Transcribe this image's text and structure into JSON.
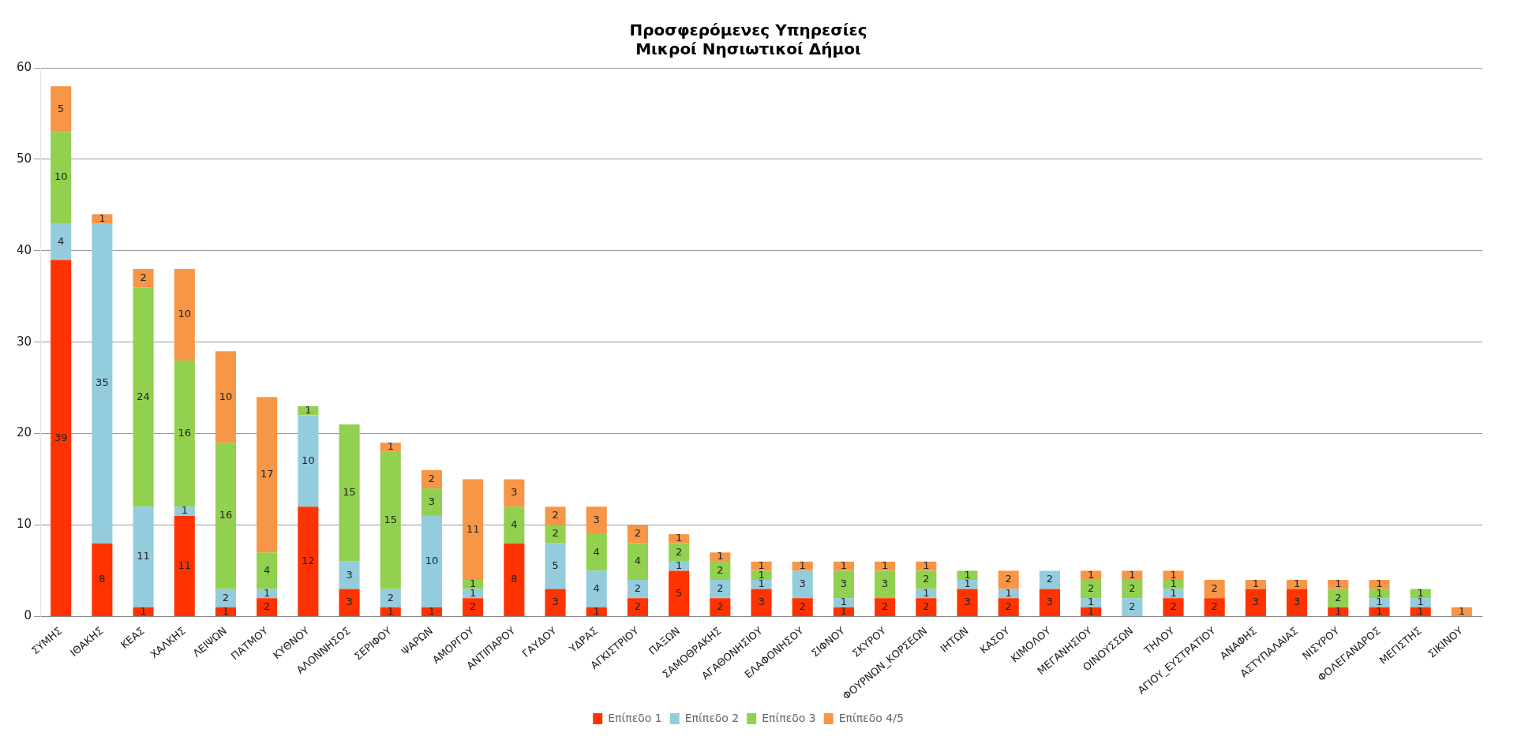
{
  "chart_data": {
    "type": "bar",
    "title": "Προσφερόμενες Υπηρεσίες\nΜικροί Νησιωτικοί Δήμοι",
    "stacked": true,
    "data_labels": true,
    "grid": "y",
    "legend": "bottom",
    "categories": [
      "ΣΥΜΗΣ",
      "ΙΘΑΚΗΣ",
      "ΚΕΑΣ",
      "ΧΑΛΚΗΣ",
      "ΛΕΙΨΩΝ",
      "ΠΑΤΜΟΥ",
      "ΚΥΘΝΟΥ",
      "ΑΛΟΝΝΗΣΟΣ",
      "ΣΕΡΙΦΟΥ",
      "ΨΑΡΩΝ",
      "ΑΜΟΡΓΟΥ",
      "ΑΝΤΙΠΑΡΟΥ",
      "ΓΑΥΔΟΥ",
      "ΥΔΡΑΣ",
      "ΑΓΚΙΣΤΡΙΟΥ",
      "ΠΑΞΩΝ",
      "ΣΑΜΟΘΡΑΚΗΣ",
      "ΑΓΑΘΟΝΗΣΙΟΥ",
      "ΕΛΑΦΟΝΗΣΟΥ",
      "ΣΙΦΝΟΥ",
      "ΣΚΥΡΟΥ",
      "ΦΟΥΡΝΩΝ_ΚΟΡΣΕΩΝ",
      "ΙΗΤΩΝ",
      "ΚΑΣΟΥ",
      "ΚΙΜΟΛΟΥ",
      "ΜΕΓΑΝΗΣΙΟΥ",
      "ΟΙΝΟΥΣΣΩΝ",
      "ΤΗΛΟΥ",
      "ΑΓΙΟΥ_ΕΥΣΤΡΑΤΙΟΥ",
      "ΑΝΑΦΗΣ",
      "ΑΣΤΥΠΑΛΑΙΑΣ",
      "ΝΙΣΥΡΟΥ",
      "ΦΟΛΕΓΑΝΔΡΟΣ",
      "ΜΕΓΙΣΤΗΣ",
      "ΣΙΚΙΝΟΥ"
    ],
    "series": [
      {
        "name": "Επίπεδο 1",
        "color": "#ff3300",
        "values": [
          39,
          8,
          1,
          11,
          1,
          2,
          12,
          3,
          1,
          1,
          2,
          8,
          3,
          1,
          2,
          5,
          2,
          3,
          2,
          1,
          2,
          2,
          3,
          2,
          3,
          1,
          null,
          2,
          2,
          3,
          3,
          1,
          1,
          1,
          null
        ]
      },
      {
        "name": "Επίπεδο 2",
        "color": "#93cddd",
        "values": [
          4,
          35,
          11,
          1,
          2,
          1,
          10,
          3,
          2,
          10,
          1,
          null,
          5,
          4,
          2,
          1,
          2,
          1,
          3,
          1,
          null,
          1,
          1,
          1,
          2,
          1,
          2,
          1,
          null,
          null,
          null,
          null,
          1,
          1,
          null
        ]
      },
      {
        "name": "Επίπεδο 3",
        "color": "#92d050",
        "values": [
          10,
          null,
          24,
          16,
          16,
          4,
          1,
          15,
          15,
          3,
          1,
          4,
          2,
          4,
          4,
          2,
          2,
          1,
          null,
          3,
          3,
          2,
          1,
          null,
          null,
          2,
          2,
          1,
          null,
          null,
          null,
          2,
          1,
          1,
          null
        ]
      },
      {
        "name": "Επίπεδο 4/5",
        "color": "#f79646",
        "values": [
          5,
          1,
          2,
          10,
          10,
          17,
          null,
          null,
          1,
          2,
          11,
          3,
          2,
          3,
          2,
          1,
          1,
          1,
          1,
          1,
          1,
          1,
          null,
          2,
          null,
          1,
          1,
          1,
          2,
          1,
          1,
          1,
          1,
          null,
          1
        ]
      }
    ],
    "ylim": [
      0,
      60
    ],
    "yticks": [
      0,
      10,
      20,
      30,
      40,
      50,
      60
    ]
  }
}
